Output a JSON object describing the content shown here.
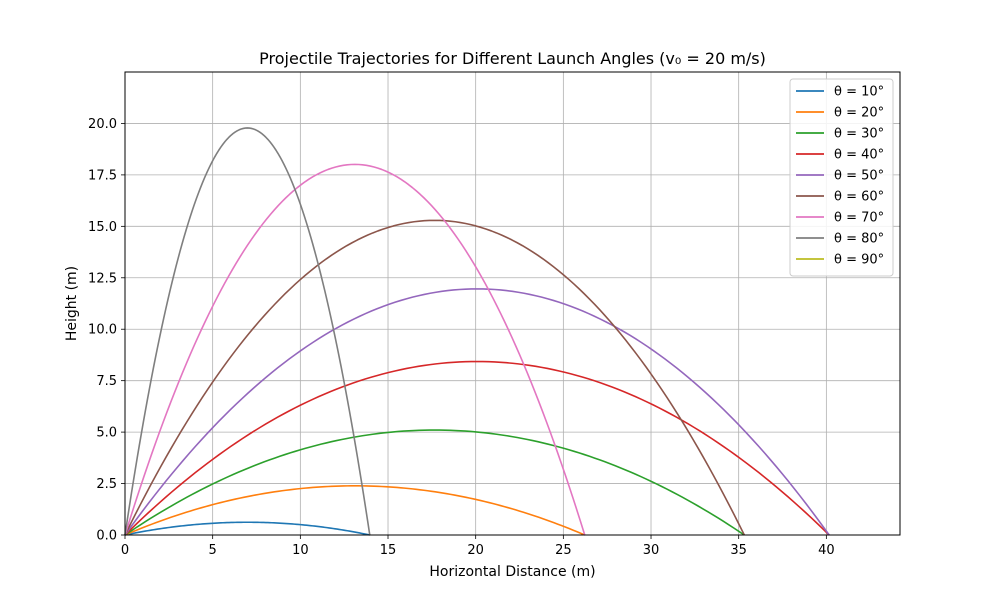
{
  "chart_data": {
    "type": "line",
    "title": "Projectile Trajectories for Different Launch Angles (v₀ = 20 m/s)",
    "xlabel": "Horizontal Distance (m)",
    "ylabel": "Height (m)",
    "xlim": [
      0,
      44.2
    ],
    "ylim": [
      0,
      22.5
    ],
    "xticks": [
      0,
      5,
      10,
      15,
      20,
      25,
      30,
      35,
      40
    ],
    "xtick_labels": [
      "0",
      "5",
      "10",
      "15",
      "20",
      "25",
      "30",
      "35",
      "40"
    ],
    "yticks": [
      0,
      2.5,
      5,
      7.5,
      10,
      12.5,
      15,
      17.5,
      20
    ],
    "ytick_labels": [
      "0.0",
      "2.5",
      "5.0",
      "7.5",
      "10.0",
      "12.5",
      "15.0",
      "17.5",
      "20.0"
    ],
    "grid": true,
    "legend_position": "top-right",
    "series": [
      {
        "name": "θ = 10°",
        "color": "#1f77b4",
        "range": 13.96,
        "max_height": 0.62
      },
      {
        "name": "θ = 20°",
        "color": "#ff7f0e",
        "range": 26.22,
        "max_height": 2.39
      },
      {
        "name": "θ = 30°",
        "color": "#2ca02c",
        "range": 35.32,
        "max_height": 5.1
      },
      {
        "name": "θ = 40°",
        "color": "#d62728",
        "range": 40.16,
        "max_height": 8.43
      },
      {
        "name": "θ = 50°",
        "color": "#9467bd",
        "range": 40.16,
        "max_height": 11.96
      },
      {
        "name": "θ = 60°",
        "color": "#8c564b",
        "range": 35.32,
        "max_height": 15.29
      },
      {
        "name": "θ = 70°",
        "color": "#e377c2",
        "range": 26.22,
        "max_height": 18.01
      },
      {
        "name": "θ = 80°",
        "color": "#7f7f7f",
        "range": 13.96,
        "max_height": 19.78
      },
      {
        "name": "θ = 90°",
        "color": "#bcbd22",
        "range": 0,
        "max_height": 0
      }
    ]
  }
}
